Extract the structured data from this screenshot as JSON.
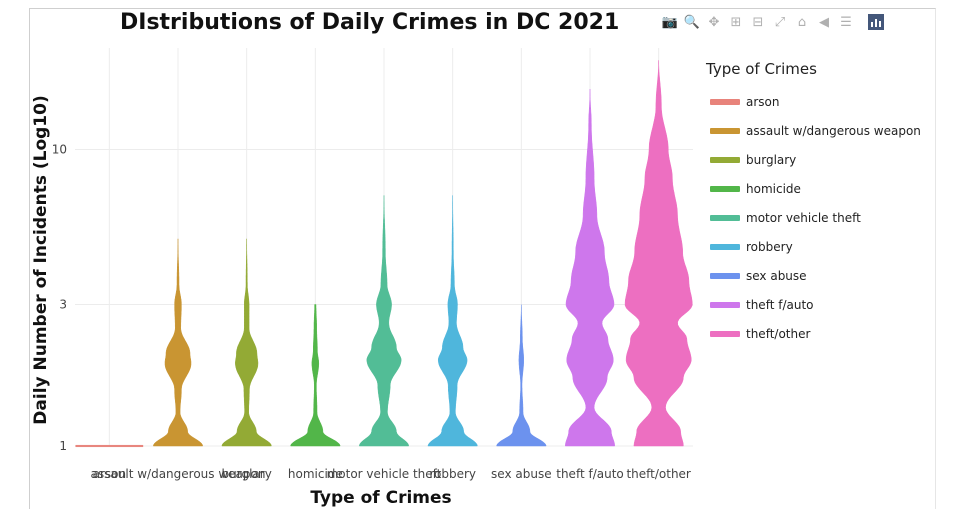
{
  "modebar": {
    "buttons": [
      {
        "name": "camera-icon",
        "glyph": "📷"
      },
      {
        "name": "zoom-icon",
        "glyph": "🔍"
      },
      {
        "name": "pan-icon",
        "glyph": "✥"
      },
      {
        "name": "zoom-in-icon",
        "glyph": "⊞"
      },
      {
        "name": "zoom-out-icon",
        "glyph": "⊟"
      },
      {
        "name": "autoscale-icon",
        "glyph": "⤢"
      },
      {
        "name": "home-icon",
        "glyph": "⌂"
      },
      {
        "name": "hover-closest-icon",
        "glyph": "◀"
      },
      {
        "name": "hover-compare-icon",
        "glyph": "☰"
      }
    ]
  },
  "chart_data": {
    "type": "violin",
    "title": "DIstributions of Daily Crimes in DC 2021",
    "xlabel": "Type of Crimes",
    "ylabel": "Daily Number of Incidents (Log10)",
    "y_scale": "log",
    "ylim": [
      1,
      22
    ],
    "yticks": [
      1,
      3,
      10
    ],
    "grid": true,
    "legend_title": "Type of Crimes",
    "legend_position": "right",
    "categories": [
      "arson",
      "assault w/dangerous weapon",
      "burglary",
      "homicide",
      "motor vehicle theft",
      "robbery",
      "sex abuse",
      "theft f/auto",
      "theft/other"
    ],
    "series": [
      {
        "name": "arson",
        "color": "#e8837b",
        "min": 1,
        "max": 1,
        "density": [
          [
            1,
            1.0
          ]
        ]
      },
      {
        "name": "assault w/dangerous weapon",
        "color": "#c99532",
        "min": 1,
        "max": 5,
        "density": [
          [
            1,
            0.72
          ],
          [
            1.12,
            0.28
          ],
          [
            1.3,
            0.06
          ],
          [
            1.55,
            0.1
          ],
          [
            1.9,
            0.38
          ],
          [
            2.05,
            0.35
          ],
          [
            2.5,
            0.08
          ],
          [
            3,
            0.1
          ],
          [
            3.5,
            0.03
          ],
          [
            5,
            0.0
          ]
        ]
      },
      {
        "name": "burglary",
        "color": "#93aa35",
        "min": 1,
        "max": 5,
        "density": [
          [
            1,
            0.72
          ],
          [
            1.12,
            0.28
          ],
          [
            1.3,
            0.06
          ],
          [
            1.55,
            0.08
          ],
          [
            1.9,
            0.33
          ],
          [
            2.05,
            0.3
          ],
          [
            2.5,
            0.07
          ],
          [
            3,
            0.07
          ],
          [
            3.5,
            0.02
          ],
          [
            5,
            0.0
          ]
        ]
      },
      {
        "name": "homicide",
        "color": "#52b649",
        "min": 1,
        "max": 3,
        "density": [
          [
            1,
            0.72
          ],
          [
            1.12,
            0.22
          ],
          [
            1.3,
            0.05
          ],
          [
            1.6,
            0.03
          ],
          [
            1.9,
            0.1
          ],
          [
            2.1,
            0.06
          ],
          [
            2.5,
            0.04
          ],
          [
            3,
            0.02
          ]
        ]
      },
      {
        "name": "motor vehicle theft",
        "color": "#52bd96",
        "min": 1,
        "max": 7,
        "density": [
          [
            1,
            0.72
          ],
          [
            1.12,
            0.36
          ],
          [
            1.3,
            0.1
          ],
          [
            1.6,
            0.18
          ],
          [
            1.95,
            0.5
          ],
          [
            2.15,
            0.36
          ],
          [
            2.6,
            0.14
          ],
          [
            3,
            0.22
          ],
          [
            3.5,
            0.09
          ],
          [
            4.5,
            0.04
          ],
          [
            7,
            0.0
          ]
        ]
      },
      {
        "name": "robbery",
        "color": "#4fb6dc",
        "min": 1,
        "max": 7,
        "density": [
          [
            1,
            0.72
          ],
          [
            1.12,
            0.32
          ],
          [
            1.3,
            0.08
          ],
          [
            1.6,
            0.13
          ],
          [
            1.95,
            0.42
          ],
          [
            2.15,
            0.3
          ],
          [
            2.6,
            0.11
          ],
          [
            3,
            0.14
          ],
          [
            3.5,
            0.05
          ],
          [
            4.5,
            0.02
          ],
          [
            7,
            0.0
          ]
        ]
      },
      {
        "name": "sex abuse",
        "color": "#6c92ee",
        "min": 1,
        "max": 3,
        "density": [
          [
            1,
            0.72
          ],
          [
            1.12,
            0.25
          ],
          [
            1.3,
            0.05
          ],
          [
            1.6,
            0.02
          ],
          [
            1.95,
            0.07
          ],
          [
            2.3,
            0.03
          ],
          [
            3,
            0.0
          ]
        ]
      },
      {
        "name": "theft f/auto",
        "color": "#ce77ec",
        "min": 1,
        "max": 16,
        "density": [
          [
            1,
            0.72
          ],
          [
            1.12,
            0.62
          ],
          [
            1.35,
            0.12
          ],
          [
            1.7,
            0.5
          ],
          [
            1.95,
            0.68
          ],
          [
            2.3,
            0.52
          ],
          [
            2.6,
            0.35
          ],
          [
            3,
            0.7
          ],
          [
            3.6,
            0.55
          ],
          [
            4.5,
            0.42
          ],
          [
            6,
            0.2
          ],
          [
            8,
            0.12
          ],
          [
            12,
            0.04
          ],
          [
            16,
            0.0
          ]
        ]
      },
      {
        "name": "theft/other",
        "color": "#ed6fc1",
        "min": 1,
        "max": 20,
        "density": [
          [
            1,
            0.72
          ],
          [
            1.12,
            0.64
          ],
          [
            1.35,
            0.2
          ],
          [
            1.7,
            0.72
          ],
          [
            1.95,
            0.95
          ],
          [
            2.3,
            0.82
          ],
          [
            2.6,
            0.55
          ],
          [
            3,
            0.98
          ],
          [
            3.6,
            0.88
          ],
          [
            4.5,
            0.7
          ],
          [
            6,
            0.55
          ],
          [
            8,
            0.4
          ],
          [
            10,
            0.28
          ],
          [
            14,
            0.08
          ],
          [
            20,
            0.0
          ]
        ]
      }
    ]
  }
}
